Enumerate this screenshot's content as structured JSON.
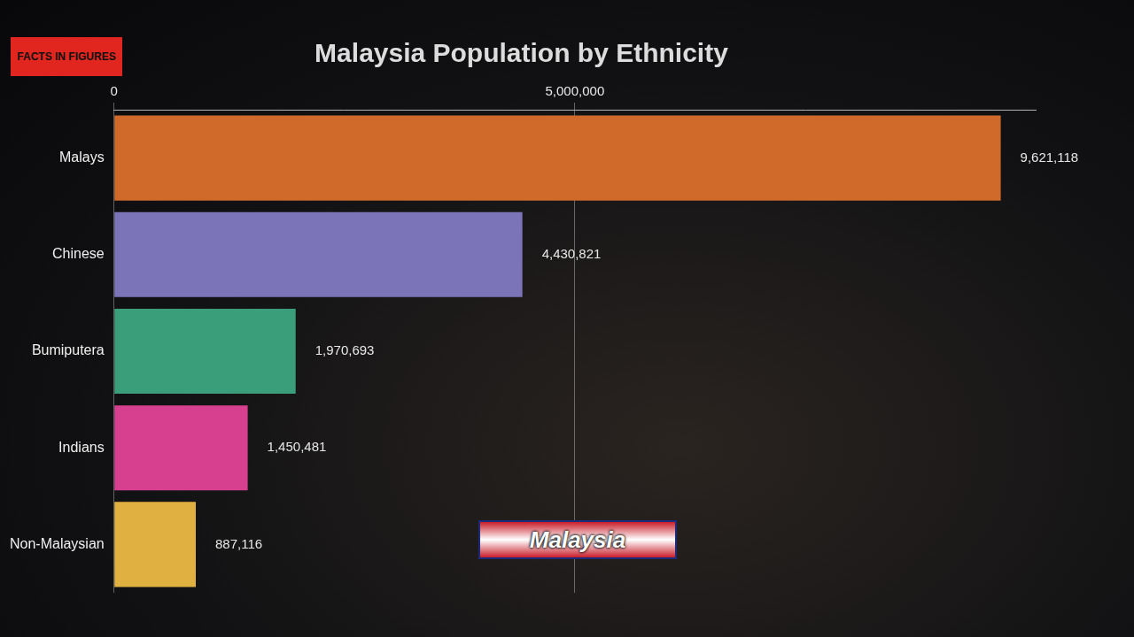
{
  "chart_data": {
    "type": "bar",
    "orientation": "horizontal",
    "title": "Malaysia Population by Ethnicity",
    "logo": "FACTS IN FIGURES",
    "emblem_text": "Malaysia",
    "categories": [
      "Malays",
      "Chinese",
      "Bumiputera",
      "Indians",
      "Non-Malaysian"
    ],
    "values": [
      9621118,
      4430821,
      1970693,
      1450481,
      887116
    ],
    "value_labels": [
      "9,621,118",
      "4,430,821",
      "1,970,693",
      "1,450,481",
      "887,116"
    ],
    "colors": [
      "#cf6a2a",
      "#7b74b9",
      "#3a9e7a",
      "#d6408e",
      "#e0b040"
    ],
    "xlim": [
      0,
      10000000
    ],
    "xticks": [
      0,
      {
        "value": 5000000,
        "label": "5,000,000"
      }
    ],
    "grid": true,
    "data_labels": true
  }
}
